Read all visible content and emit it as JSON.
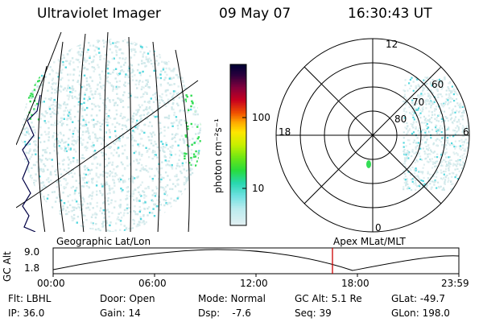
{
  "header": {
    "title": "Ultraviolet Imager",
    "date": "09 May 07",
    "time": "16:30:43 UT"
  },
  "colors": {
    "aurora_low": "#cfe8ea",
    "aurora_mid": "#55d8df",
    "aurora_high": "#33dd55",
    "current_time_marker": "#cc0000"
  },
  "colorbar": {
    "label": "photon cm⁻²s⁻¹",
    "ticks": [
      "100",
      "10"
    ],
    "scale": "log"
  },
  "polar_plot": {
    "mlt_labels": [
      "12",
      "18",
      "6",
      "0"
    ],
    "mlat_labels": [
      "60",
      "70",
      "80"
    ]
  },
  "timeline": {
    "left_title": "Geographic Lat/Lon",
    "right_title": "Apex MLat/MLT",
    "axis_label": "GC Alt",
    "y_ticks": [
      "9.0",
      "1.8"
    ],
    "x_ticks": [
      "00:00",
      "06:00",
      "12:00",
      "18:00",
      "23:59"
    ],
    "current_time_fraction": 0.6885
  },
  "info": {
    "row1": [
      "Flt: LBHL",
      "Door: Open",
      "Mode: Normal",
      "GC Alt: 5.1 Re",
      "GLat: -49.7"
    ],
    "row2": [
      "IP: 36.0",
      "Gain: 14",
      "Dsp:    -7.6",
      "Seq: 39",
      "GLon: 198.0"
    ]
  }
}
